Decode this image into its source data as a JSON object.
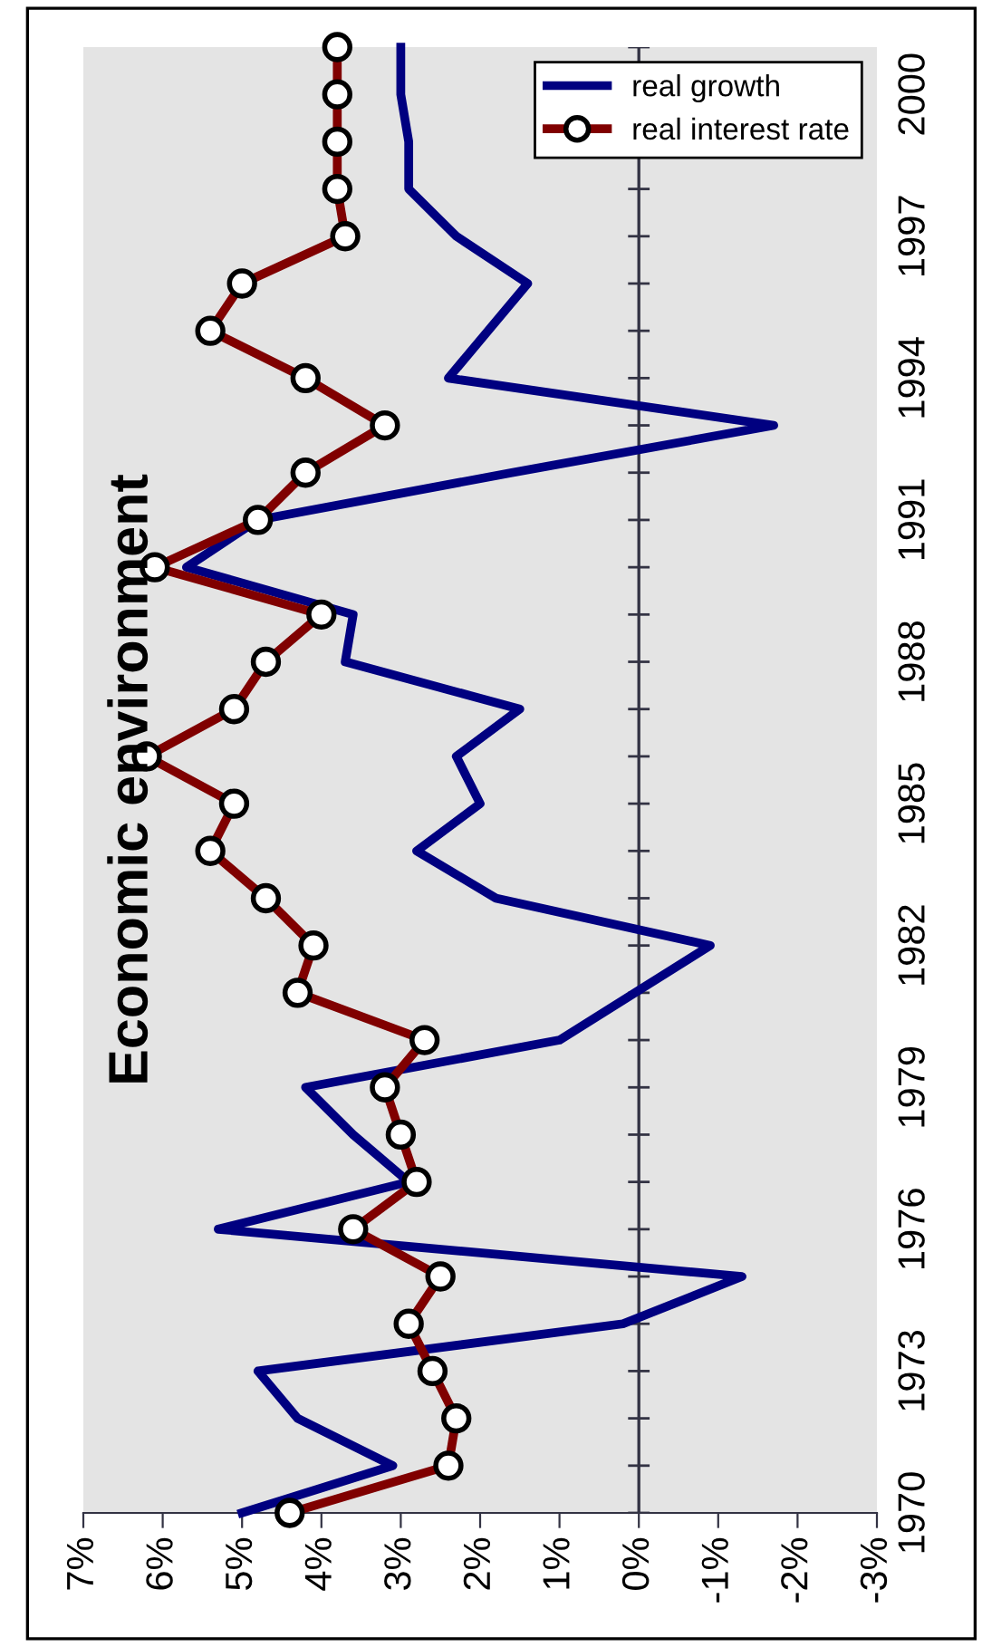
{
  "chart_data": {
    "type": "line",
    "title": "Economic environment",
    "series": [
      {
        "name": "real growth",
        "color": "#000080",
        "marker": "none",
        "x": [
          5.0,
          3.1,
          4.3,
          4.8,
          0.2,
          -1.3,
          5.3,
          2.9,
          3.6,
          4.2,
          1.0,
          0.05,
          -0.9,
          1.8,
          2.8,
          2.0,
          2.3,
          1.5,
          3.7,
          3.6,
          5.7,
          4.8,
          1.6,
          -1.7,
          2.4,
          1.9,
          1.4,
          2.3,
          2.9,
          2.9,
          3.0,
          3.0
        ],
        "values": [
          1970,
          1971,
          1972,
          1973,
          1974,
          1975,
          1976,
          1977,
          1978,
          1979,
          1980,
          1981,
          1982,
          1983,
          1984,
          1985,
          1986,
          1987,
          1988,
          1989,
          1990,
          1991,
          1992,
          1993,
          1994,
          1995,
          1996,
          1997,
          1998,
          1999,
          2000,
          2001
        ]
      },
      {
        "name": "real interest rate",
        "color": "#800000",
        "marker": "circle",
        "x": [
          4.4,
          2.4,
          2.3,
          2.6,
          2.9,
          2.5,
          3.6,
          2.8,
          3.0,
          3.2,
          2.7,
          4.3,
          4.1,
          4.7,
          5.4,
          5.1,
          6.2,
          5.1,
          4.7,
          4.0,
          6.1,
          4.8,
          4.2,
          3.2,
          4.2,
          5.4,
          5.0,
          3.7,
          3.8,
          3.8,
          3.8,
          3.8
        ],
        "values": [
          1970,
          1971,
          1972,
          1973,
          1974,
          1975,
          1976,
          1977,
          1978,
          1979,
          1980,
          1981,
          1982,
          1983,
          1984,
          1985,
          1986,
          1987,
          1988,
          1989,
          1990,
          1991,
          1992,
          1993,
          1994,
          1995,
          1996,
          1997,
          1998,
          1999,
          2000,
          2001
        ]
      }
    ],
    "ylim": [
      1970,
      2001
    ],
    "yticks": [
      1970,
      {
        "value": 1971,
        "label": null
      },
      {
        "value": 1972,
        "label": null
      },
      1973,
      {
        "value": 1974,
        "label": null
      },
      {
        "value": 1975,
        "label": null
      },
      1976,
      {
        "value": 1977,
        "label": null
      },
      {
        "value": 1978,
        "label": null
      },
      1979,
      {
        "value": 1980,
        "label": null
      },
      {
        "value": 1981,
        "label": null
      },
      1982,
      {
        "value": 1983,
        "label": null
      },
      {
        "value": 1984,
        "label": null
      },
      1985,
      {
        "value": 1986,
        "label": null
      },
      {
        "value": 1987,
        "label": null
      },
      1988,
      {
        "value": 1989,
        "label": null
      },
      {
        "value": 1990,
        "label": null
      },
      1991,
      {
        "value": 1992,
        "label": null
      },
      {
        "value": 1993,
        "label": null
      },
      1994,
      {
        "value": 1995,
        "label": null
      },
      {
        "value": 1996,
        "label": null
      },
      1997,
      {
        "value": 1998,
        "label": null
      },
      {
        "value": 1999,
        "label": null
      },
      2000,
      {
        "value": 2001,
        "label": null
      }
    ],
    "xlim": [
      7,
      -3
    ],
    "xticks": [
      {
        "value": 7,
        "label": "7%"
      },
      {
        "value": 6,
        "label": "6%"
      },
      {
        "value": 5,
        "label": "5%"
      },
      {
        "value": 4,
        "label": "4%"
      },
      {
        "value": 3,
        "label": "3%"
      },
      {
        "value": 2,
        "label": "2%"
      },
      {
        "value": 1,
        "label": "1%"
      },
      {
        "value": 0,
        "label": "0%"
      },
      {
        "value": -1,
        "label": "-1%"
      },
      {
        "value": -2,
        "label": "-2%"
      },
      {
        "value": -3,
        "label": "-3%"
      }
    ],
    "ref_lines": [
      {
        "axis": "x",
        "value": 0,
        "color": "#333344"
      }
    ],
    "legend": "top right",
    "grid": false
  }
}
